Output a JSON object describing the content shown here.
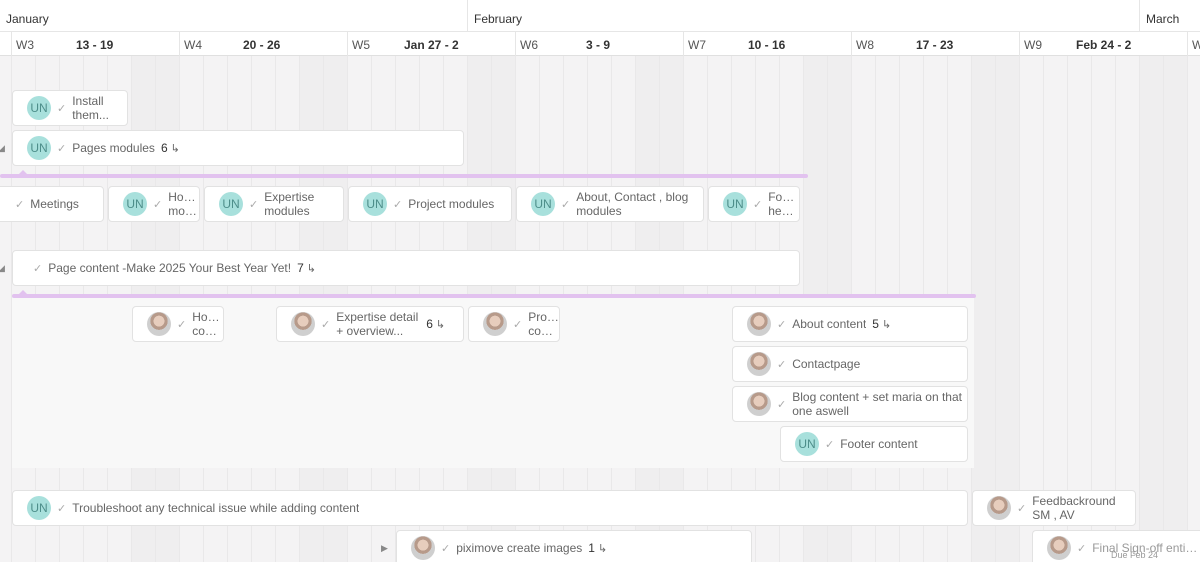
{
  "timeline": {
    "months": [
      {
        "label": "January"
      },
      {
        "label": "February"
      },
      {
        "label": "March"
      }
    ],
    "weeks": [
      {
        "num": "W3",
        "range": "13 - 19"
      },
      {
        "num": "W4",
        "range": "20 - 26"
      },
      {
        "num": "W5",
        "range": "Jan 27 - 2"
      },
      {
        "num": "W6",
        "range": "3 - 9"
      },
      {
        "num": "W7",
        "range": "10 - 16"
      },
      {
        "num": "W8",
        "range": "17 - 23"
      },
      {
        "num": "W9",
        "range": "Feb 24 - 2"
      },
      {
        "num": "W",
        "range": ""
      }
    ]
  },
  "avatars": {
    "unassigned": "UN"
  },
  "tasks": {
    "install": "Install them...",
    "pages_modules": "Pages modules",
    "pages_modules_count": "6",
    "meetings": "Meetings",
    "home_modules": "Home modules",
    "expertise_modules": "Expertise modules",
    "project_modules": "Project modules",
    "about_modules": "About, Contact , blog modules",
    "footer_modules": "Footer header",
    "page_content": "Page content -Make 2025 Your Best Year Yet!",
    "page_content_count": "7",
    "home_content": "Home content",
    "expertise_detail": "Expertise detail + overview...",
    "expertise_detail_count": "6",
    "project_content": "Project content",
    "about_content": "About content",
    "about_content_count": "5",
    "contact_page": "Contactpage",
    "blog_content": "Blog content + set maria on that one aswell",
    "footer_content": "Footer content",
    "troubleshoot": "Troubleshoot any technical issue while adding content",
    "feedback": "Feedbackround SM , AV",
    "piximove": "piximove create images",
    "piximove_count": "1",
    "signoff": "Final Sign-off entire ...",
    "signoff_due": "Due Feb 24"
  },
  "colors": {
    "accent_purple": "#e2c2ef",
    "avatar_un": "#a8e0dc"
  },
  "icons": {
    "check": "check-icon",
    "subtasks": "subtasks-icon",
    "collapse": "caret-icon"
  }
}
